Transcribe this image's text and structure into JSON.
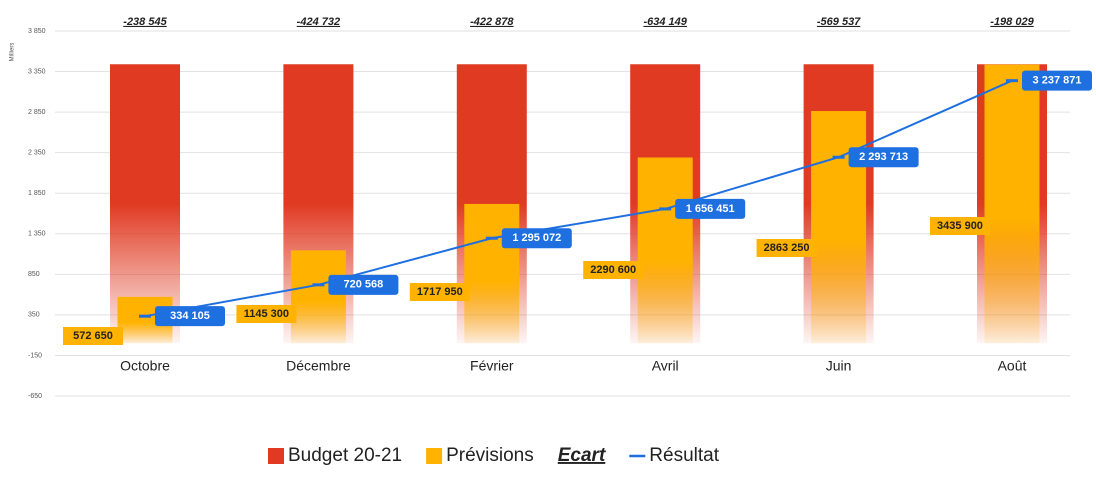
{
  "chart_data": {
    "type": "bar",
    "y_axis_label": "Milliers",
    "categories": [
      "Octobre",
      "Décembre",
      "Février",
      "Avril",
      "Juin",
      "Août"
    ],
    "ylim": [
      -650,
      3850
    ],
    "yticks": [
      -650,
      -150,
      350,
      850,
      {
        "value": 1350,
        "label": "1 350"
      },
      {
        "value": 1850,
        "label": "1 850"
      },
      {
        "value": 2350,
        "label": "2 350"
      },
      {
        "value": 2850,
        "label": "2 850"
      },
      {
        "value": 3350,
        "label": "3 350"
      },
      {
        "value": 3850,
        "label": "3 850"
      }
    ],
    "grid": true,
    "legend": "bottom",
    "series": [
      {
        "name": "Budget 20-21",
        "type": "bar",
        "color": "#e03a22",
        "values": [
          3440,
          3440,
          3440,
          3440,
          3440,
          3440
        ]
      },
      {
        "name": "Prévisions",
        "type": "bar",
        "color": "#ffb300",
        "values": [
          572.65,
          1145.3,
          1717.95,
          2290.6,
          2863.25,
          3435.9
        ],
        "value_labels": [
          "572 650",
          "1145 300",
          "1717 950",
          "2290 600",
          "2863 250",
          "3435 900"
        ]
      },
      {
        "name": "Ecart",
        "type": "label",
        "values": [
          -238.545,
          -424.732,
          -422.878,
          -634.149,
          -569.537,
          -198.029
        ],
        "value_labels": [
          "-238 545",
          "-424 732",
          "-422 878",
          "-634 149",
          "-569 537",
          "-198 029"
        ]
      },
      {
        "name": "Résultat",
        "type": "line",
        "color": "#1e6fe0",
        "values": [
          334.105,
          720.568,
          1295.072,
          1656.451,
          2293.713,
          3237.871
        ],
        "value_labels": [
          "334 105",
          "720 568",
          "1 295 072",
          "1 656 451",
          "2 293 713",
          "3 237 871"
        ]
      }
    ]
  }
}
